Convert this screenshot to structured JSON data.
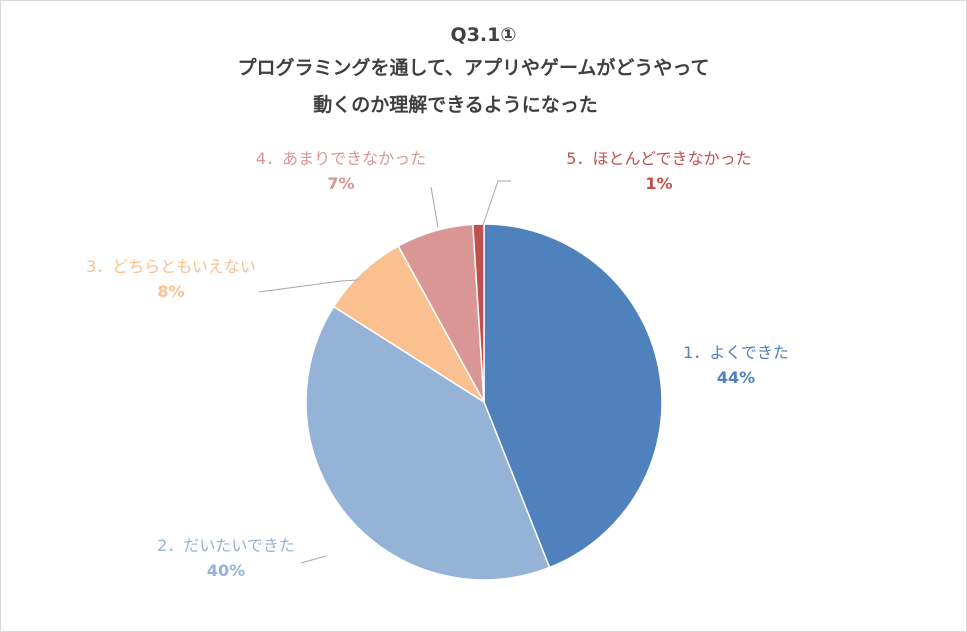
{
  "chart_data": {
    "type": "pie",
    "title_lines": [
      "Q3.1①",
      "プログラミングを通して、アプリやゲームがどうやって",
      "動くのか理解できるようになった"
    ],
    "slices": [
      {
        "label": "1．よくできた",
        "value": 44,
        "value_label": "44%",
        "color": "#4f81bd"
      },
      {
        "label": "2．だいたいできた",
        "value": 40,
        "value_label": "40%",
        "color": "#95b3d7"
      },
      {
        "label": "3．どちらともいえない",
        "value": 8,
        "value_label": "8%",
        "color": "#fac090"
      },
      {
        "label": "4．あまりできなかった",
        "value": 7,
        "value_label": "7%",
        "color": "#d99694"
      },
      {
        "label": "5．ほとんどできなかった",
        "value": 1,
        "value_label": "1%",
        "color": "#c0504d"
      }
    ],
    "legend": "none",
    "leader_line_color": "#a6a6a6"
  }
}
